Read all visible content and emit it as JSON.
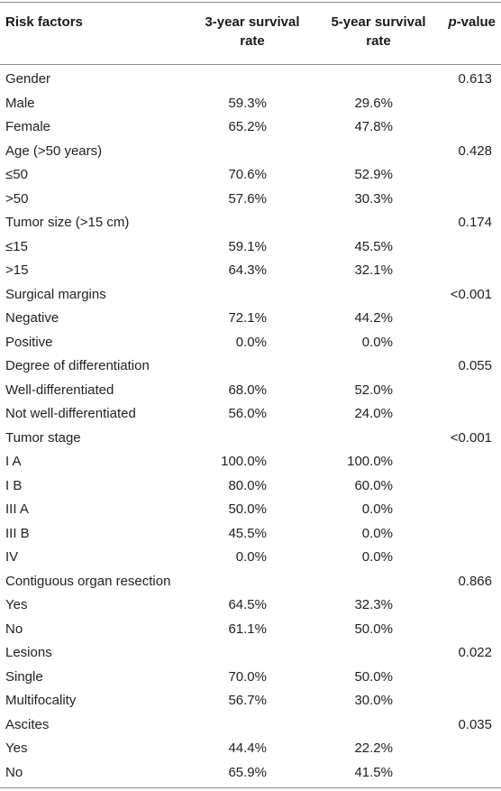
{
  "header": {
    "risk_factors": "Risk factors",
    "three_year": "3-year survival rate",
    "five_year": "5-year survival rate",
    "p_letter": "p",
    "p_suffix": "-value"
  },
  "rows": [
    {
      "factor": "Gender",
      "y3": "",
      "y5": "",
      "p": "0.613"
    },
    {
      "factor": "Male",
      "y3": "59.3%",
      "y5": "29.6%",
      "p": ""
    },
    {
      "factor": "Female",
      "y3": "65.2%",
      "y5": "47.8%",
      "p": ""
    },
    {
      "factor": "Age (>50 years)",
      "y3": "",
      "y5": "",
      "p": "0.428"
    },
    {
      "factor": "≤50",
      "y3": "70.6%",
      "y5": "52.9%",
      "p": ""
    },
    {
      "factor": ">50",
      "y3": "57.6%",
      "y5": "30.3%",
      "p": ""
    },
    {
      "factor": "Tumor size (>15 cm)",
      "y3": "",
      "y5": "",
      "p": "0.174"
    },
    {
      "factor": "≤15",
      "y3": "59.1%",
      "y5": "45.5%",
      "p": ""
    },
    {
      "factor": ">15",
      "y3": "64.3%",
      "y5": "32.1%",
      "p": ""
    },
    {
      "factor": "Surgical margins",
      "y3": "",
      "y5": "",
      "p": "<0.001"
    },
    {
      "factor": "Negative",
      "y3": "72.1%",
      "y5": "44.2%",
      "p": ""
    },
    {
      "factor": "Positive",
      "y3": "0.0%",
      "y5": "0.0%",
      "p": ""
    },
    {
      "factor": "Degree of differentiation",
      "y3": "",
      "y5": "",
      "p": "0.055"
    },
    {
      "factor": "Well-differentiated",
      "y3": "68.0%",
      "y5": "52.0%",
      "p": ""
    },
    {
      "factor": "Not well-differentiated",
      "y3": "56.0%",
      "y5": "24.0%",
      "p": ""
    },
    {
      "factor": "Tumor stage",
      "y3": "",
      "y5": "",
      "p": "<0.001"
    },
    {
      "factor": "I A",
      "y3": "100.0%",
      "y5": "100.0%",
      "p": ""
    },
    {
      "factor": "I B",
      "y3": "80.0%",
      "y5": "60.0%",
      "p": ""
    },
    {
      "factor": "III A",
      "y3": "50.0%",
      "y5": "0.0%",
      "p": ""
    },
    {
      "factor": "III B",
      "y3": "45.5%",
      "y5": "0.0%",
      "p": ""
    },
    {
      "factor": "IV",
      "y3": "0.0%",
      "y5": "0.0%",
      "p": ""
    },
    {
      "factor": "Contiguous organ resection",
      "y3": "",
      "y5": "",
      "p": "0.866"
    },
    {
      "factor": "Yes",
      "y3": "64.5%",
      "y5": "32.3%",
      "p": ""
    },
    {
      "factor": "No",
      "y3": "61.1%",
      "y5": "50.0%",
      "p": ""
    },
    {
      "factor": "Lesions",
      "y3": "",
      "y5": "",
      "p": "0.022"
    },
    {
      "factor": "Single",
      "y3": "70.0%",
      "y5": "50.0%",
      "p": ""
    },
    {
      "factor": "Multifocality",
      "y3": "56.7%",
      "y5": "30.0%",
      "p": ""
    },
    {
      "factor": "Ascites",
      "y3": "",
      "y5": "",
      "p": "0.035"
    },
    {
      "factor": "Yes",
      "y3": "44.4%",
      "y5": "22.2%",
      "p": ""
    },
    {
      "factor": "No",
      "y3": "65.9%",
      "y5": "41.5%",
      "p": ""
    }
  ]
}
